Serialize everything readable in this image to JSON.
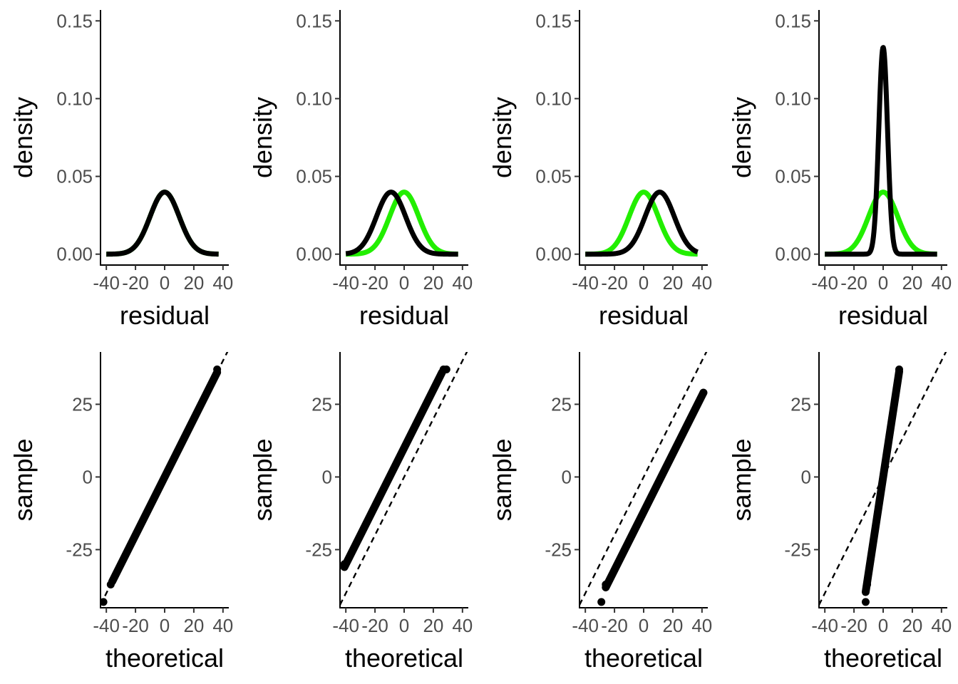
{
  "chart_data": [
    {
      "type": "line",
      "xlabel": "residual",
      "ylabel": "density",
      "xticks": [
        "-40",
        "-20",
        "0",
        "20",
        "40"
      ],
      "xtick_values": [
        -40,
        -20,
        0,
        20,
        40
      ],
      "yticks": [
        "0.00",
        "0.05",
        "0.10",
        "0.15"
      ],
      "ytick_values": [
        0,
        0.05,
        0.1,
        0.15
      ],
      "xlim": [
        -44,
        44
      ],
      "ylim": [
        -0.007,
        0.157
      ],
      "grid": false,
      "series": [
        {
          "color": "#22ee00",
          "kind": "density",
          "mean": 0,
          "sd": 10,
          "points": [
            [
              -40,
              0.0
            ],
            [
              -30,
              0.0045
            ],
            [
              -20,
              0.0055
            ],
            [
              -10,
              0.024
            ],
            [
              0,
              0.04
            ],
            [
              10,
              0.024
            ],
            [
              20,
              0.0055
            ],
            [
              30,
              0.0045
            ],
            [
              37,
              0.0
            ]
          ]
        },
        {
          "color": "#000000",
          "kind": "density",
          "mean": 0,
          "sd": 10,
          "points": [
            [
              -40,
              0.0
            ],
            [
              -30,
              0.0044
            ],
            [
              -20,
              0.0054
            ],
            [
              -10,
              0.0242
            ],
            [
              0,
              0.0399
            ],
            [
              10,
              0.0242
            ],
            [
              20,
              0.0054
            ],
            [
              30,
              0.0044
            ],
            [
              37,
              0.0
            ]
          ]
        }
      ]
    },
    {
      "type": "line",
      "xlabel": "residual",
      "ylabel": "density",
      "xticks": [
        "-40",
        "-20",
        "0",
        "20",
        "40"
      ],
      "xtick_values": [
        -40,
        -20,
        0,
        20,
        40
      ],
      "yticks": [
        "0.00",
        "0.05",
        "0.10",
        "0.15"
      ],
      "ytick_values": [
        0,
        0.05,
        0.1,
        0.15
      ],
      "xlim": [
        -44,
        44
      ],
      "ylim": [
        -0.007,
        0.157
      ],
      "grid": false,
      "series": [
        {
          "color": "#22ee00",
          "kind": "density",
          "mean": 0,
          "sd": 10,
          "points": [
            [
              -30,
              0.0
            ],
            [
              -20,
              0.0055
            ],
            [
              -10,
              0.024
            ],
            [
              0,
              0.04
            ],
            [
              10,
              0.024
            ],
            [
              20,
              0.0055
            ],
            [
              37,
              0.0
            ]
          ]
        },
        {
          "color": "#000000",
          "kind": "density",
          "mean": -9,
          "sd": 10,
          "points": [
            [
              -40,
              0.0
            ],
            [
              -30,
              0.004
            ],
            [
              -20,
              0.018
            ],
            [
              -9,
              0.0399
            ],
            [
              0,
              0.027
            ],
            [
              10,
              0.0065
            ],
            [
              20,
              0.0006
            ],
            [
              37,
              0.0
            ]
          ]
        }
      ]
    },
    {
      "type": "line",
      "xlabel": "residual",
      "ylabel": "density",
      "xticks": [
        "-40",
        "-20",
        "0",
        "20",
        "40"
      ],
      "xtick_values": [
        -40,
        -20,
        0,
        20,
        40
      ],
      "yticks": [
        "0.00",
        "0.05",
        "0.10",
        "0.15"
      ],
      "ytick_values": [
        0,
        0.05,
        0.1,
        0.15
      ],
      "xlim": [
        -44,
        44
      ],
      "ylim": [
        -0.007,
        0.157
      ],
      "grid": false,
      "series": [
        {
          "color": "#22ee00",
          "kind": "density",
          "mean": 0,
          "sd": 10,
          "points": [
            [
              -37,
              0.0
            ],
            [
              -20,
              0.0055
            ],
            [
              -10,
              0.024
            ],
            [
              0,
              0.04
            ],
            [
              10,
              0.024
            ],
            [
              20,
              0.0055
            ],
            [
              30,
              0.0
            ]
          ]
        },
        {
          "color": "#000000",
          "kind": "density",
          "mean": 11,
          "sd": 10,
          "points": [
            [
              -40,
              0.0
            ],
            [
              -20,
              0.0007
            ],
            [
              -10,
              0.004
            ],
            [
              0,
              0.022
            ],
            [
              11,
              0.0399
            ],
            [
              20,
              0.027
            ],
            [
              30,
              0.007
            ],
            [
              40,
              0.0015
            ]
          ]
        }
      ]
    },
    {
      "type": "line",
      "xlabel": "residual",
      "ylabel": "density",
      "xticks": [
        "-40",
        "-20",
        "0",
        "20",
        "40"
      ],
      "xtick_values": [
        -40,
        -20,
        0,
        20,
        40
      ],
      "yticks": [
        "0.00",
        "0.05",
        "0.10",
        "0.15"
      ],
      "ytick_values": [
        0,
        0.05,
        0.1,
        0.15
      ],
      "xlim": [
        -44,
        44
      ],
      "ylim": [
        -0.007,
        0.157
      ],
      "grid": false,
      "series": [
        {
          "color": "#22ee00",
          "kind": "density",
          "mean": 0,
          "sd": 10,
          "points": [
            [
              -40,
              0.0
            ],
            [
              -20,
              0.0055
            ],
            [
              -10,
              0.024
            ],
            [
              0,
              0.04
            ],
            [
              10,
              0.024
            ],
            [
              20,
              0.0055
            ],
            [
              37,
              0.0
            ]
          ]
        },
        {
          "color": "#000000",
          "kind": "density",
          "mean": 0,
          "sd": 3,
          "points": [
            [
              -40,
              0.0
            ],
            [
              -10,
              0.0003
            ],
            [
              -5,
              0.033
            ],
            [
              0,
              0.133
            ],
            [
              5,
              0.033
            ],
            [
              10,
              0.0003
            ],
            [
              40,
              0.0
            ]
          ]
        }
      ]
    },
    {
      "type": "scatter",
      "xlabel": "theoretical",
      "ylabel": "sample",
      "xticks": [
        "-40",
        "-20",
        "0",
        "20",
        "40"
      ],
      "xtick_values": [
        -40,
        -20,
        0,
        20,
        40
      ],
      "yticks": [
        "-25",
        "0",
        "25"
      ],
      "ytick_values": [
        -25,
        0,
        25
      ],
      "xlim": [
        -44,
        44
      ],
      "ylim": [
        -45,
        43
      ],
      "grid": false,
      "reference_line": {
        "slope": 1,
        "intercept": 0,
        "dashed": true
      },
      "points": {
        "x_from": -36,
        "x_to": 36,
        "slope": 1,
        "intercept": 0
      },
      "outliers": [
        [
          -37,
          -37
        ],
        [
          36,
          37
        ],
        [
          -42,
          -43
        ]
      ]
    },
    {
      "type": "scatter",
      "xlabel": "theoretical",
      "ylabel": "sample",
      "xticks": [
        "-40",
        "-20",
        "0",
        "20",
        "40"
      ],
      "xtick_values": [
        -40,
        -20,
        0,
        20,
        40
      ],
      "yticks": [
        "-25",
        "0",
        "25"
      ],
      "ytick_values": [
        -25,
        0,
        25
      ],
      "xlim": [
        -44,
        44
      ],
      "ylim": [
        -45,
        43
      ],
      "grid": false,
      "reference_line": {
        "slope": 1,
        "intercept": 0,
        "dashed": true
      },
      "points": {
        "x_from": -41,
        "x_to": 26,
        "slope": 1,
        "intercept": 10
      },
      "outliers": [
        [
          -41,
          -30
        ],
        [
          27,
          37
        ],
        [
          29,
          37
        ]
      ]
    },
    {
      "type": "scatter",
      "xlabel": "theoretical",
      "ylabel": "sample",
      "xticks": [
        "-40",
        "-20",
        "0",
        "20",
        "40"
      ],
      "xtick_values": [
        -40,
        -20,
        0,
        20,
        40
      ],
      "yticks": [
        "-25",
        "0",
        "25"
      ],
      "ytick_values": [
        -25,
        0,
        25
      ],
      "xlim": [
        -44,
        44
      ],
      "ylim": [
        -45,
        43
      ],
      "grid": false,
      "reference_line": {
        "slope": 1,
        "intercept": 0,
        "dashed": true
      },
      "points": {
        "x_from": -26,
        "x_to": 41,
        "slope": 1,
        "intercept": -12
      },
      "outliers": [
        [
          -29,
          -43
        ],
        [
          -26,
          -37
        ],
        [
          41,
          29
        ]
      ]
    },
    {
      "type": "scatter",
      "xlabel": "theoretical",
      "ylabel": "sample",
      "xticks": [
        "-40",
        "-20",
        "0",
        "20",
        "40"
      ],
      "xtick_values": [
        -40,
        -20,
        0,
        20,
        40
      ],
      "yticks": [
        "-25",
        "0",
        "25"
      ],
      "ytick_values": [
        -25,
        0,
        25
      ],
      "xlim": [
        -44,
        44
      ],
      "ylim": [
        -45,
        43
      ],
      "grid": false,
      "reference_line": {
        "slope": 1,
        "intercept": 0,
        "dashed": true
      },
      "points": {
        "x_from": -12,
        "x_to": 11,
        "slope": 3.3,
        "intercept": 0
      },
      "outliers": [
        [
          -12,
          -43
        ],
        [
          -11,
          -37
        ],
        [
          11,
          37
        ]
      ]
    }
  ]
}
